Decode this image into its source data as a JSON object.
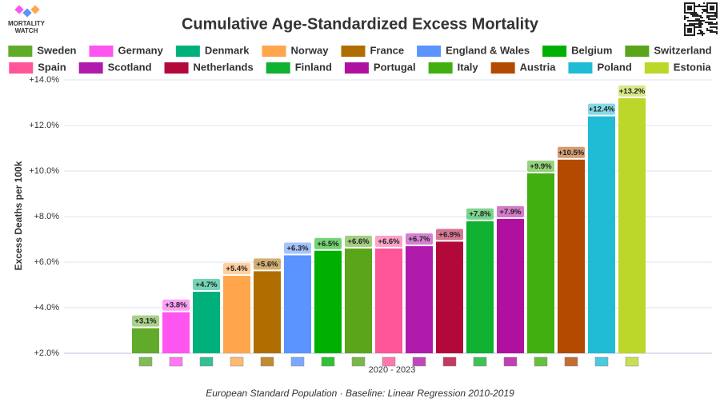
{
  "logo": [
    "MORTALITY",
    "WATCH"
  ],
  "chart_data": {
    "type": "bar",
    "title": "Cumulative Age-Standardized Excess Mortality",
    "y_label": "Excess Deaths per 100k",
    "x_label": "2020 - 2023",
    "footnote": "European Standard Population · Baseline: Linear Regression 2010-2019",
    "categories": [
      "Sweden",
      "Germany",
      "Denmark",
      "Norway",
      "France",
      "England & Wales",
      "Belgium",
      "Switzerland",
      "Spain",
      "Scotland",
      "Netherlands",
      "Finland",
      "Portugal",
      "Italy",
      "Austria",
      "Poland",
      "Estonia"
    ],
    "values": [
      3.1,
      3.8,
      4.7,
      5.4,
      5.6,
      6.3,
      6.5,
      6.6,
      6.6,
      6.7,
      6.9,
      7.8,
      7.9,
      9.9,
      10.5,
      12.4,
      13.2
    ],
    "value_labels": [
      "+3.1%",
      "+3.8%",
      "+4.7%",
      "+5.4%",
      "+5.6%",
      "+6.3%",
      "+6.5%",
      "+6.6%",
      "+6.6%",
      "+6.7%",
      "+6.9%",
      "+7.8%",
      "+7.9%",
      "+9.9%",
      "+10.5%",
      "+12.4%",
      "+13.2%"
    ],
    "colors": [
      "#62ab2a",
      "#ff55f0",
      "#00b07a",
      "#ffa64d",
      "#b06e00",
      "#5b93ff",
      "#00b000",
      "#5aa51a",
      "#ff5599",
      "#b01aaa",
      "#b3083a",
      "#10b030",
      "#b010a0",
      "#40b010",
      "#b34a00",
      "#20bcd6",
      "#bcd62a"
    ],
    "ylim": [
      2,
      14
    ],
    "yticks": [
      {
        "value": 2,
        "label": "+2.0%"
      },
      {
        "value": 4,
        "label": "+4.0%"
      },
      {
        "value": 6,
        "label": "+6.0%"
      },
      {
        "value": 8,
        "label": "+8.0%"
      },
      {
        "value": 10,
        "label": "+10.0%"
      },
      {
        "value": 12,
        "label": "+12.0%"
      },
      {
        "value": 14,
        "label": "+14.0%"
      }
    ],
    "grid": true,
    "legend": "top"
  }
}
